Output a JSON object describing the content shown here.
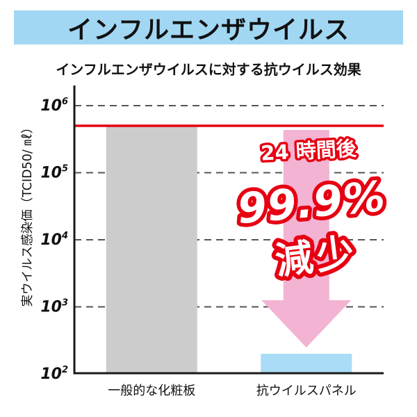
{
  "banner": {
    "title": "インフルエンザウイルス"
  },
  "colors": {
    "banner_bg": "#a2d7f3",
    "accent_red": "#e60012",
    "grid_gray": "#555555",
    "axis_black": "#1a1a1a",
    "bar_gray": "#cccccc",
    "bar_blue": "#a9dcf6",
    "arrow_pink": "#f3b3d3",
    "text_black": "#111111"
  },
  "chart_data": {
    "type": "bar",
    "title": "インフルエンザウイルスに対する抗ウイルス効果",
    "ylabel": "実ウイルス感染価（TCID50/ ㎖）",
    "yscale": "log",
    "ylim_exponents": [
      2,
      6
    ],
    "yticks": [
      {
        "base": "10",
        "exp": "6"
      },
      {
        "base": "10",
        "exp": "5"
      },
      {
        "base": "10",
        "exp": "4"
      },
      {
        "base": "10",
        "exp": "3"
      },
      {
        "base": "10",
        "exp": "2"
      }
    ],
    "categories": [
      "一般的な化粧板",
      "抗ウイルスパネル"
    ],
    "values": [
      500000,
      200
    ],
    "bar_colors": [
      "#cccccc",
      "#a9dcf6"
    ],
    "baseline_value": 500000,
    "baseline_color": "#e60012",
    "arrow_color": "#f3b3d3",
    "grid": true,
    "legend": false,
    "annotations": {
      "time_label": "24 時間後",
      "percent_label": "99.9%",
      "decrease_label": "減少"
    }
  }
}
